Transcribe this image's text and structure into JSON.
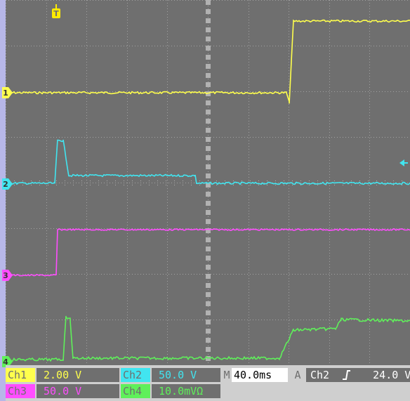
{
  "trigger_marker": {
    "label": "T",
    "color": "#ffea00",
    "icon": "trigger-position-icon"
  },
  "level_marker": {
    "icon": "trigger-level-arrow-icon",
    "color": "#41e5f0"
  },
  "channels": [
    {
      "id": "1",
      "name": "Ch1",
      "scale": "2.00 V",
      "color": "#ffff4d"
    },
    {
      "id": "2",
      "name": "Ch2",
      "scale": "50.0 V",
      "color": "#41e5f0"
    },
    {
      "id": "3",
      "name": "Ch3",
      "scale": "50.0 V",
      "color": "#ff4dff"
    },
    {
      "id": "4",
      "name": "Ch4",
      "scale": "10.0mVΩ",
      "color": "#5ff05a"
    }
  ],
  "timebase": {
    "label": "M",
    "value": "40.0ms"
  },
  "trigger": {
    "label": "A",
    "source": "Ch2",
    "slope_icon": "rising-edge-icon",
    "level": "24.0 V"
  }
}
